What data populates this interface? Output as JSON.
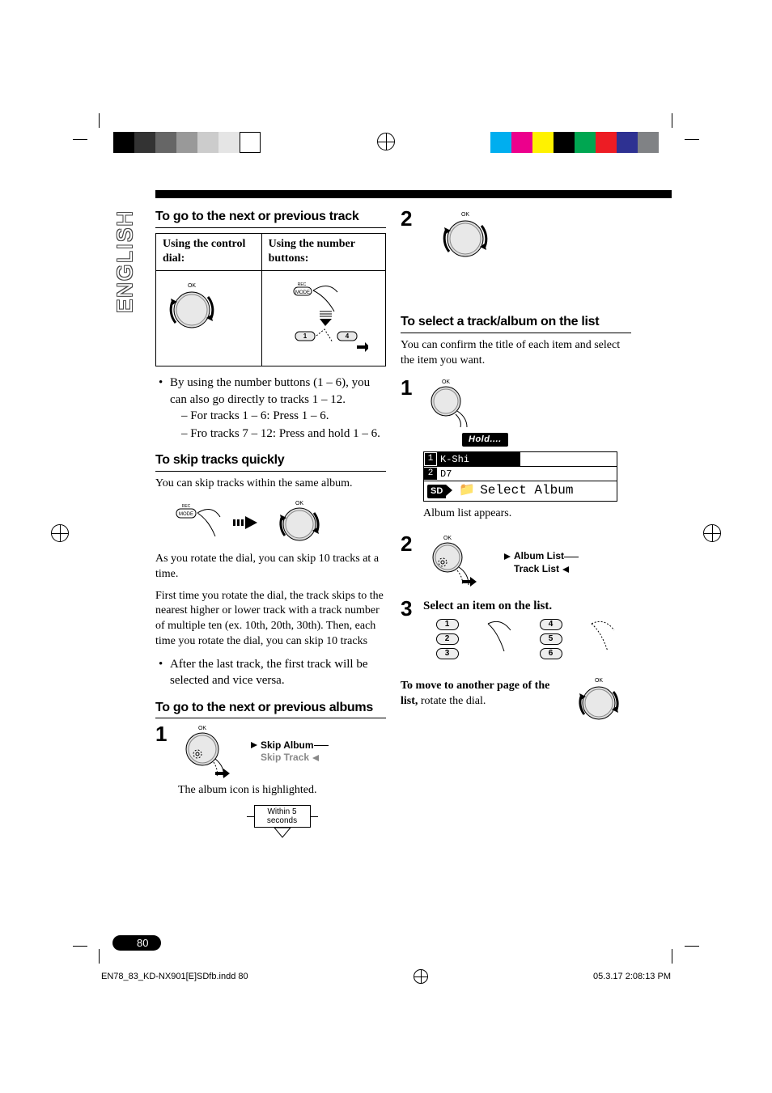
{
  "print_marks": {
    "left_bar_colors": [
      "#000000",
      "#333333",
      "#666666",
      "#999999",
      "#cccccc",
      "#e5e5e5",
      "#ffffff"
    ],
    "right_bar_colors": [
      "#00aeef",
      "#ec008c",
      "#fff200",
      "#000000",
      "#00a651",
      "#ed1c24",
      "#2e3192",
      "#808285"
    ]
  },
  "language_tab": "ENGLISH",
  "page_number": "80",
  "footer": {
    "file": "EN78_83_KD-NX901[E]SDfb.indd   80",
    "timestamp": "05.3.17   2:08:13 PM"
  },
  "left": {
    "h_next_prev_track": "To go to the next or previous track",
    "th_dial": "Using the control dial:",
    "th_buttons": "Using the number buttons:",
    "ok_label": "OK",
    "rec_label": "REC",
    "mode_label": "MODE",
    "bullet_main": "By using the number buttons (1 – 6), you can also go directly to tracks 1 – 12.",
    "sub1": "– For tracks 1 – 6:    Press 1 – 6.",
    "sub2": "– Fro tracks 7 – 12:  Press and hold 1 – 6.",
    "h_skip": "To skip tracks quickly",
    "skip_intro": "You can skip tracks within the same album.",
    "skip_p1": "As you rotate the dial, you can skip 10 tracks at a time.",
    "skip_p2": "First time you rotate the dial, the track skips to the nearest higher or lower track with a track number of multiple ten (ex. 10th, 20th, 30th). Then, each time you rotate the dial, you can skip 10 tracks",
    "skip_bullet": "After the last track, the first track will be selected and vice versa.",
    "h_next_prev_album": "To go to the next or previous albums",
    "skip_album": "Skip Album",
    "skip_track": "Skip Track",
    "album_icon_note": "The album icon is highlighted.",
    "within": "Within 5 seconds"
  },
  "right": {
    "h_select": "To select a track/album on the list",
    "select_intro": "You can confirm the title of each item and select the item you want.",
    "hold": "Hold....",
    "lcd_item1": "K-Shi",
    "lcd_item2": "D7",
    "lcd_bottom": "Select Album",
    "sd": "SD",
    "album_list_appears": "Album list appears.",
    "album_list": "Album List",
    "track_list": "Track List",
    "step3": "Select an item on the list.",
    "move_page_bold": "To move to another page of the list,",
    "move_page_rest": " rotate the dial."
  }
}
